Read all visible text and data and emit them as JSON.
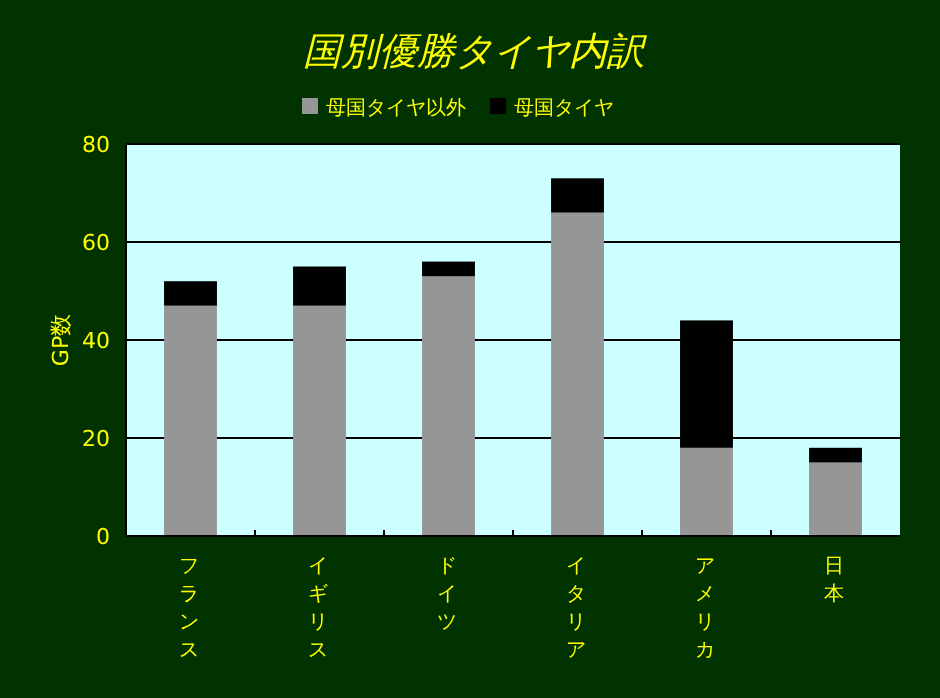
{
  "chart_data": {
    "type": "bar",
    "stacked": true,
    "title": "国別優勝タイヤ内訳",
    "ylabel": "GP数",
    "categories": [
      "フランス",
      "イギリス",
      "ドイツ",
      "イタリア",
      "アメリカ",
      "日本"
    ],
    "series": [
      {
        "name": "母国タイヤ以外",
        "color": "#969696",
        "values": [
          47,
          47,
          53,
          66,
          18,
          15
        ]
      },
      {
        "name": "母国タイヤ",
        "color": "#000000",
        "values": [
          5,
          8,
          3,
          7,
          26,
          3
        ]
      }
    ],
    "ylim": [
      0,
      80
    ],
    "yticks": [
      0,
      20,
      40,
      60,
      80
    ],
    "grid": "y",
    "legend": "top"
  }
}
